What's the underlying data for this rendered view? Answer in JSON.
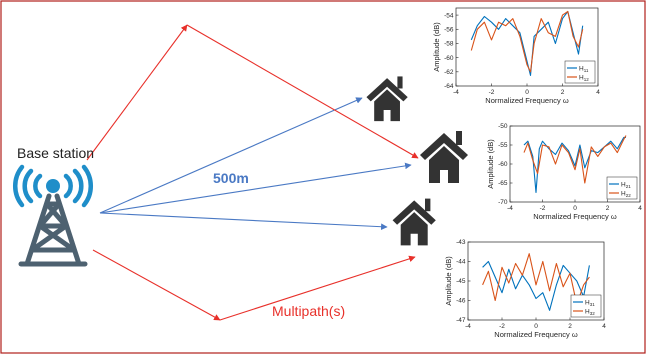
{
  "labels": {
    "base_station": "Base station",
    "distance": "500m",
    "multipath": "Multipath(s)"
  },
  "colors": {
    "frame": "#b0201c",
    "direct_path": "#4a79c4",
    "multipath": "#e8302a",
    "antenna_waves": "#1f8ec9",
    "tower": "#4d6170",
    "house": "#333333",
    "series_a": "#0072BD",
    "series_b": "#D95319"
  },
  "icons": [
    "antenna-tower-icon",
    "house-icon"
  ],
  "chart_data": [
    {
      "type": "line",
      "xlabel": "Normalized Frequency ω",
      "ylabel": "Amplitude (dB)",
      "xlim": [
        -4,
        4
      ],
      "ylim": [
        -64,
        -53
      ],
      "xticks": [
        "-4",
        "-2",
        "0",
        "2",
        "4"
      ],
      "yticks": [
        "-54",
        "-56",
        "-58",
        "-60",
        "-62",
        "-64"
      ],
      "legend_position": "bottom-right",
      "series": [
        {
          "name": "H11",
          "name_base": "H",
          "name_sub": "11",
          "x": [
            -3.14,
            -2.8,
            -2.4,
            -2.0,
            -1.6,
            -1.2,
            -0.8,
            -0.4,
            0.0,
            0.2,
            0.4,
            0.8,
            1.2,
            1.6,
            2.0,
            2.3,
            2.6,
            2.9,
            3.14
          ],
          "y": [
            -57.5,
            -55.5,
            -54.2,
            -55.0,
            -56.0,
            -54.5,
            -55.5,
            -56.5,
            -60.5,
            -62.5,
            -57.0,
            -56.0,
            -55.0,
            -58.0,
            -54.5,
            -53.5,
            -56.5,
            -59.5,
            -55.5
          ]
        },
        {
          "name": "H12",
          "name_base": "H",
          "name_sub": "12",
          "x": [
            -3.14,
            -2.8,
            -2.4,
            -2.0,
            -1.6,
            -1.2,
            -0.8,
            -0.4,
            0.0,
            0.2,
            0.4,
            0.8,
            1.2,
            1.6,
            2.0,
            2.3,
            2.6,
            2.9,
            3.14
          ],
          "y": [
            -59.0,
            -56.0,
            -55.0,
            -57.5,
            -55.0,
            -55.5,
            -54.5,
            -57.0,
            -61.0,
            -62.0,
            -58.0,
            -54.5,
            -56.5,
            -57.0,
            -54.0,
            -53.5,
            -57.0,
            -58.5,
            -56.0
          ]
        }
      ]
    },
    {
      "type": "line",
      "xlabel": "Normalized Frequency ω",
      "ylabel": "Amplitude (dB)",
      "xlim": [
        -4,
        4
      ],
      "ylim": [
        -70,
        -50
      ],
      "xticks": [
        "-4",
        "-2",
        "0",
        "2",
        "4"
      ],
      "yticks": [
        "-50",
        "-55",
        "-60",
        "-65",
        "-70"
      ],
      "legend_position": "bottom-right",
      "series": [
        {
          "name": "H21",
          "name_base": "H",
          "name_sub": "21",
          "x": [
            -3.14,
            -2.9,
            -2.6,
            -2.4,
            -2.2,
            -2.0,
            -1.6,
            -1.2,
            -0.8,
            -0.4,
            0.0,
            0.3,
            0.6,
            1.0,
            1.4,
            1.8,
            2.2,
            2.6,
            3.0,
            3.14
          ],
          "y": [
            -55.0,
            -54.0,
            -58.0,
            -67.5,
            -56.0,
            -54.0,
            -56.0,
            -57.5,
            -54.5,
            -56.5,
            -60.5,
            -55.0,
            -61.0,
            -56.5,
            -57.0,
            -55.5,
            -54.0,
            -56.0,
            -53.0,
            -53.0
          ]
        },
        {
          "name": "H22",
          "name_base": "H",
          "name_sub": "22",
          "x": [
            -3.14,
            -2.9,
            -2.6,
            -2.3,
            -2.0,
            -1.6,
            -1.2,
            -0.8,
            -0.4,
            0.0,
            0.3,
            0.6,
            1.0,
            1.4,
            1.8,
            2.2,
            2.6,
            3.0,
            3.14
          ],
          "y": [
            -57.0,
            -54.5,
            -59.0,
            -62.5,
            -55.0,
            -55.5,
            -60.0,
            -55.0,
            -57.0,
            -61.5,
            -56.0,
            -65.0,
            -55.5,
            -58.0,
            -55.5,
            -54.5,
            -57.0,
            -53.5,
            -52.5
          ]
        }
      ]
    },
    {
      "type": "line",
      "xlabel": "Normalized Frequency ω",
      "ylabel": "Amplitude (dB)",
      "xlim": [
        -4,
        4
      ],
      "ylim": [
        -47,
        -43
      ],
      "xticks": [
        "-4",
        "-2",
        "0",
        "2",
        "4"
      ],
      "yticks": [
        "-43",
        "-44",
        "-45",
        "-46",
        "-47"
      ],
      "legend_position": "bottom-right",
      "series": [
        {
          "name": "H31",
          "name_base": "H",
          "name_sub": "31",
          "x": [
            -3.14,
            -2.8,
            -2.4,
            -2.0,
            -1.6,
            -1.2,
            -0.8,
            -0.4,
            0.0,
            0.4,
            0.8,
            1.2,
            1.6,
            2.0,
            2.4,
            2.8,
            3.14
          ],
          "y": [
            -44.3,
            -44.0,
            -44.8,
            -45.6,
            -44.4,
            -45.4,
            -44.7,
            -45.2,
            -45.9,
            -45.6,
            -46.5,
            -45.2,
            -44.2,
            -44.6,
            -45.0,
            -45.8,
            -44.2
          ]
        },
        {
          "name": "H32",
          "name_base": "H",
          "name_sub": "32",
          "x": [
            -3.14,
            -2.8,
            -2.4,
            -2.0,
            -1.6,
            -1.2,
            -0.8,
            -0.4,
            0.0,
            0.4,
            0.8,
            1.2,
            1.6,
            2.0,
            2.4,
            2.8,
            3.14
          ],
          "y": [
            -45.2,
            -44.5,
            -46.0,
            -44.3,
            -45.1,
            -44.1,
            -44.7,
            -43.6,
            -45.2,
            -44.0,
            -45.5,
            -44.1,
            -45.3,
            -44.6,
            -46.2,
            -45.2,
            -44.8
          ]
        }
      ]
    }
  ]
}
